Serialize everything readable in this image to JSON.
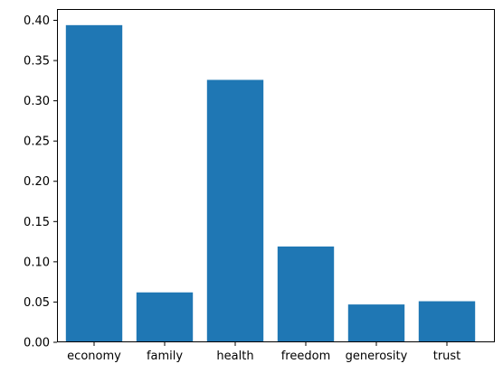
{
  "chart_data": {
    "type": "bar",
    "title": "",
    "xlabel": "",
    "ylabel": "",
    "categories": [
      "economy",
      "family",
      "health",
      "freedom",
      "generosity",
      "trust"
    ],
    "values": [
      0.394,
      0.062,
      0.326,
      0.119,
      0.047,
      0.051
    ],
    "ylim": [
      0,
      0.414
    ],
    "yticks": [
      0.0,
      0.05,
      0.1,
      0.15,
      0.2,
      0.25,
      0.3,
      0.35,
      0.4
    ],
    "ytick_labels": [
      "0.00",
      "0.05",
      "0.10",
      "0.15",
      "0.20",
      "0.25",
      "0.30",
      "0.35",
      "0.40"
    ],
    "grid": false,
    "bar_color": "#1f77b4"
  }
}
